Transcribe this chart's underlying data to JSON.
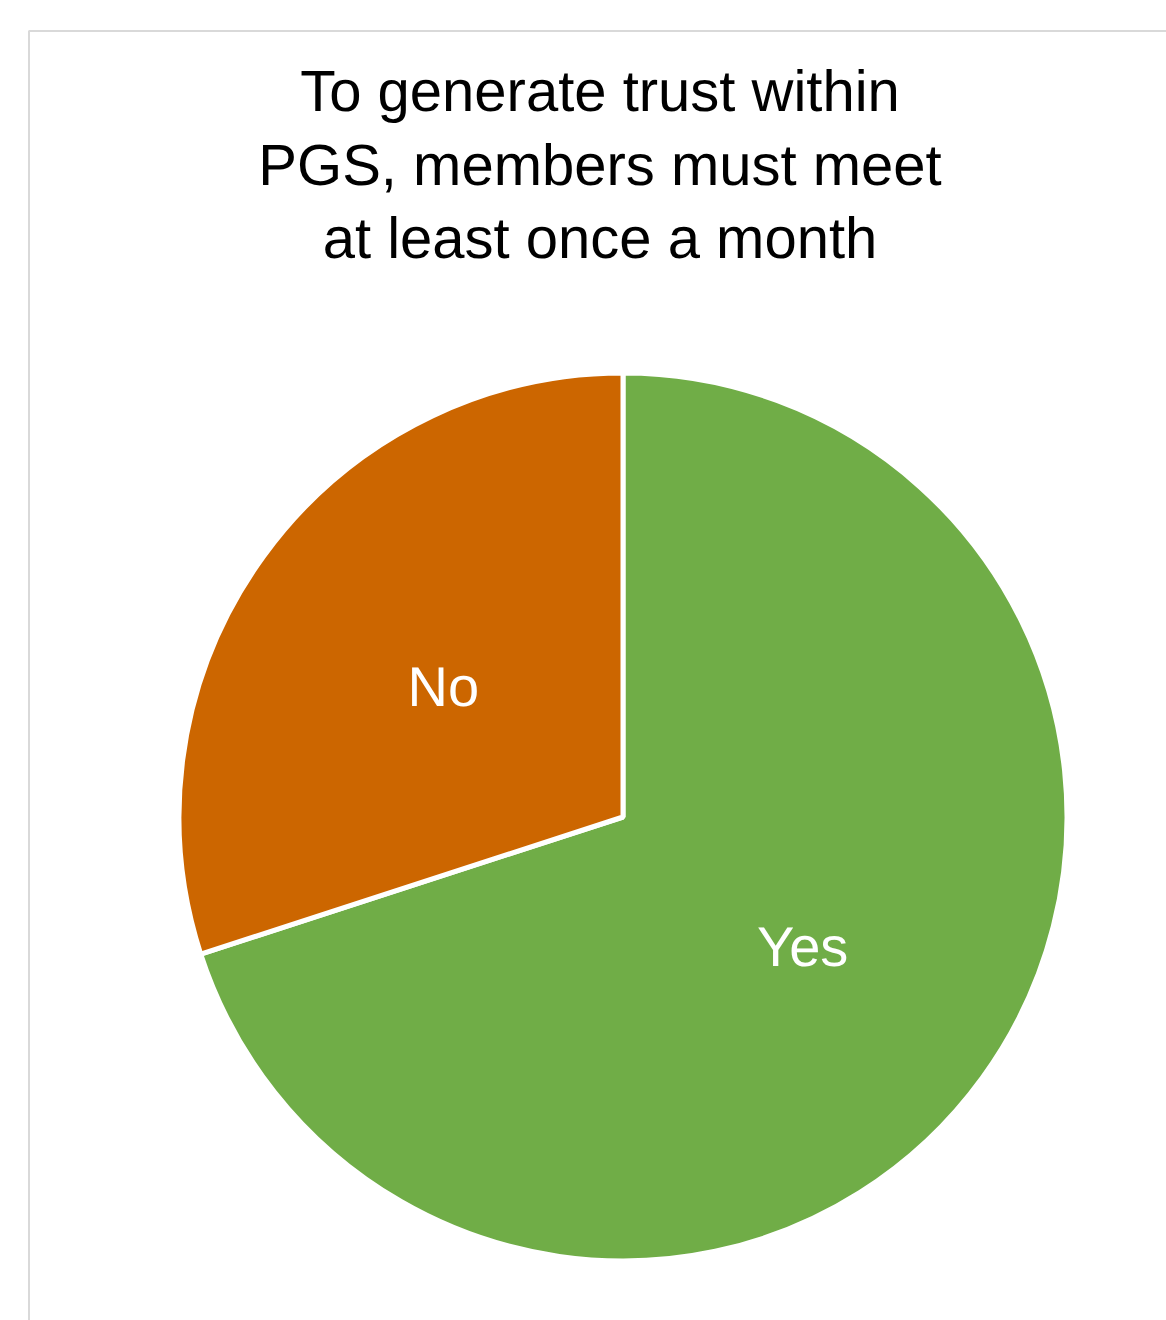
{
  "chart_data": {
    "type": "pie",
    "title": "To generate trust within PGS, members must meet at least once a month",
    "categories": [
      "Yes",
      "No"
    ],
    "values": [
      70,
      30
    ],
    "colors": [
      "#70ad47",
      "#cc6600"
    ]
  }
}
